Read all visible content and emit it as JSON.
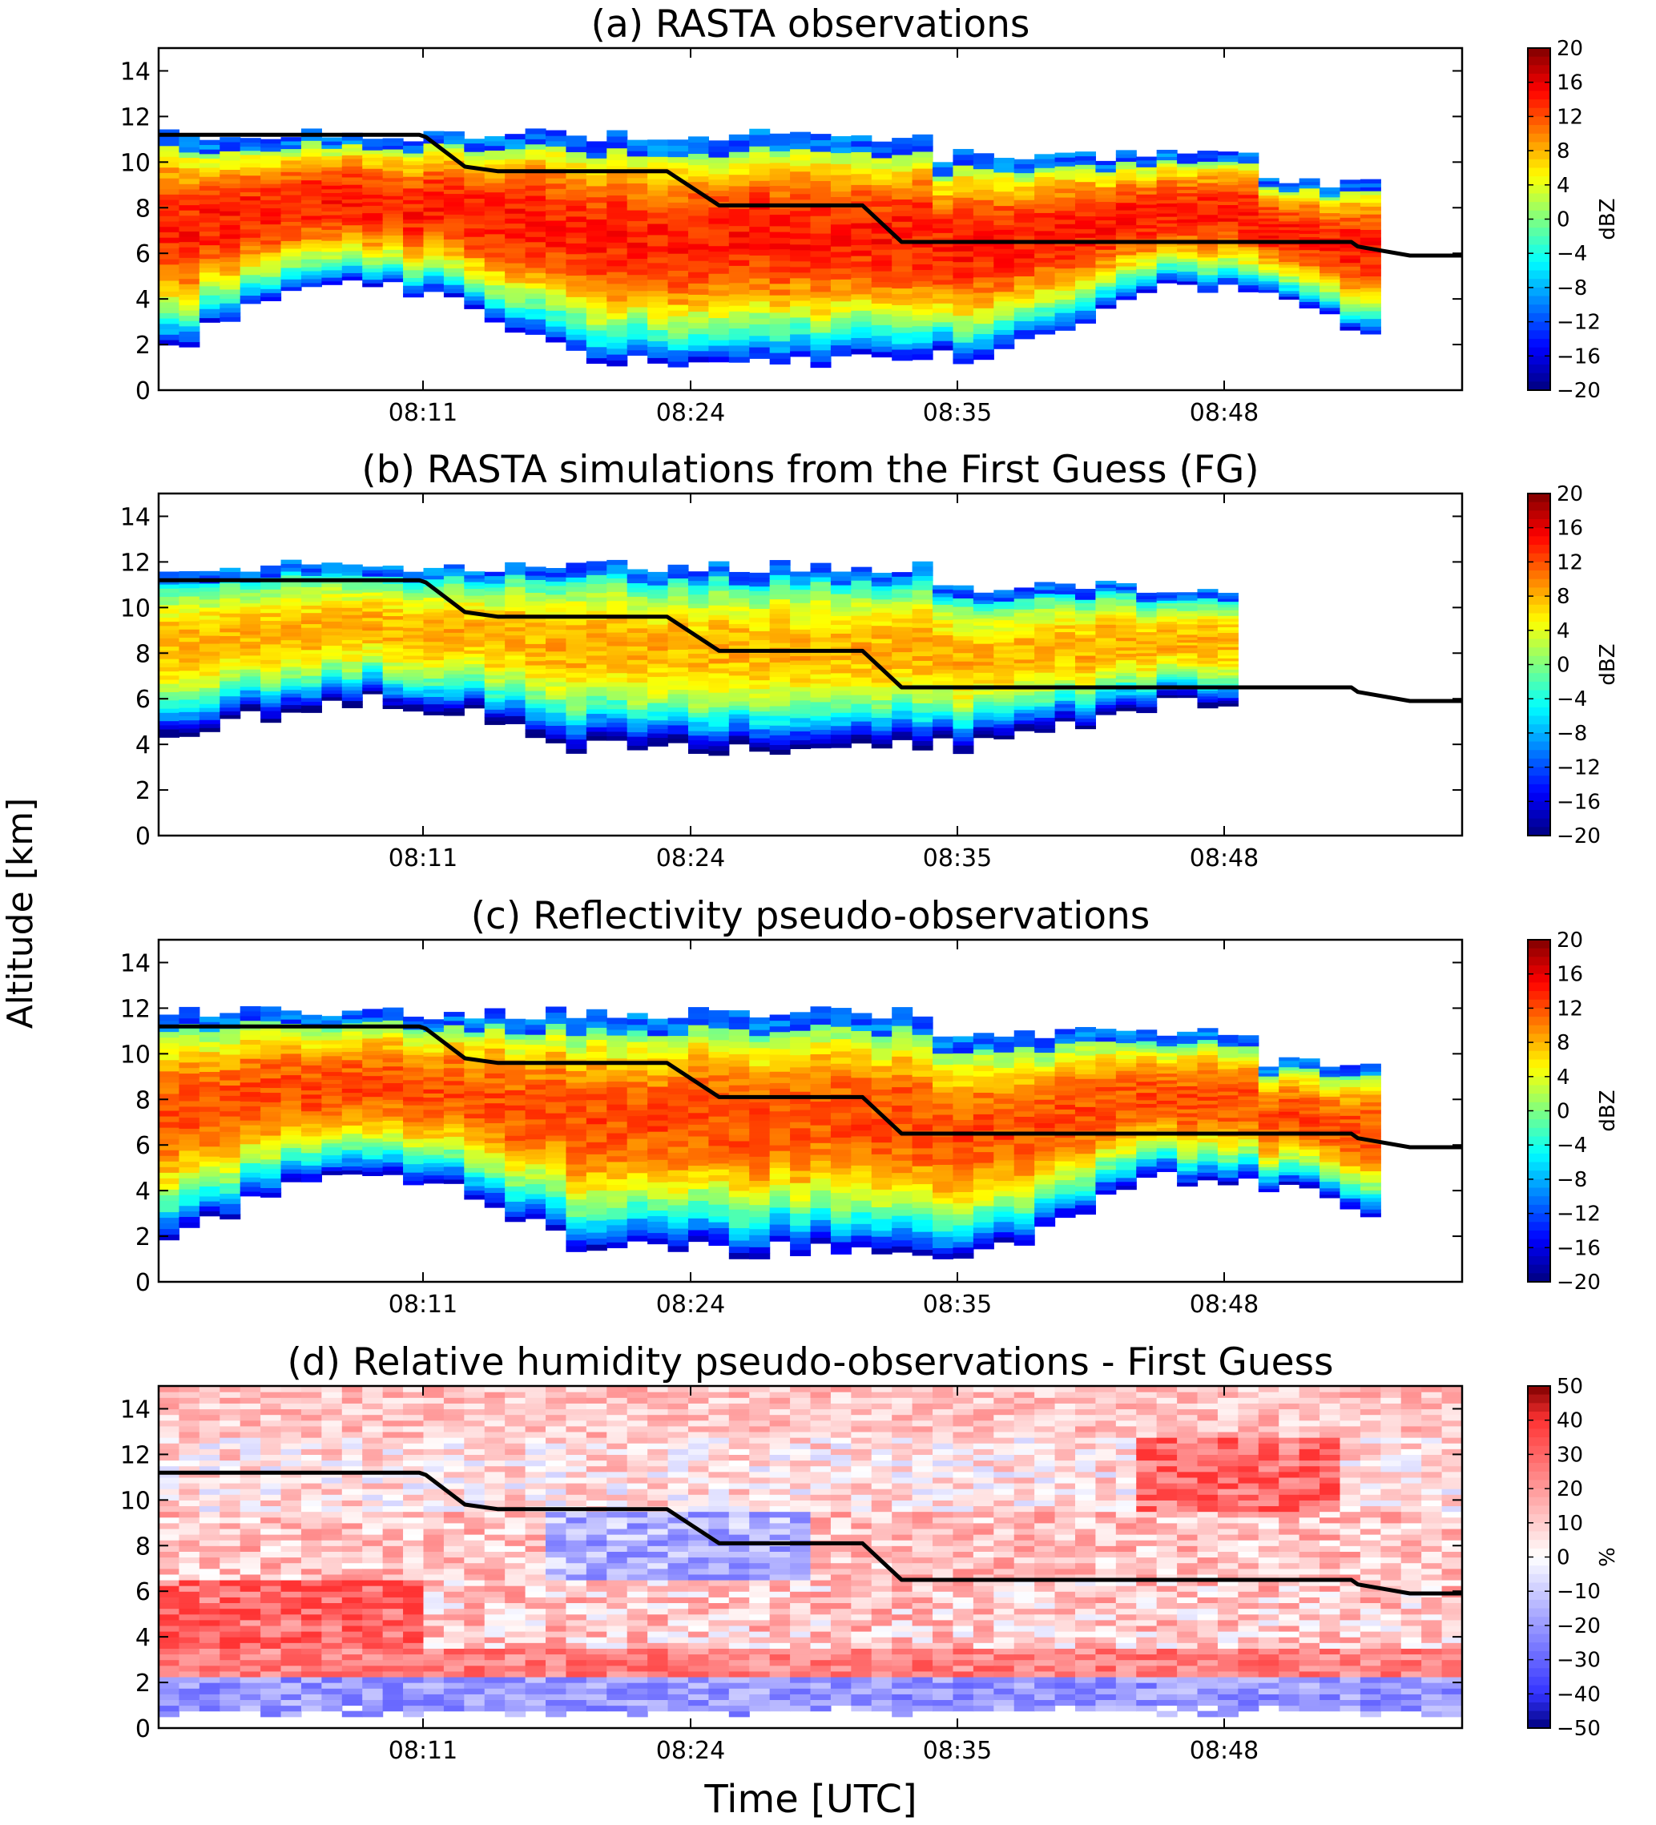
{
  "figure": {
    "ylabel": "Altitude [km]",
    "xlabel": "Time [UTC]"
  },
  "chart_data": [
    {
      "id": "a",
      "type": "heatmap",
      "title": "(a) RASTA observations",
      "ylim": [
        0,
        15
      ],
      "yticks": [
        0,
        2,
        4,
        6,
        8,
        10,
        12,
        14
      ],
      "xticks": [
        "08:11",
        "08:24",
        "08:35",
        "08:48"
      ],
      "colormap": "jet",
      "colorbar": {
        "label": "dBZ",
        "min": -20,
        "max": 20,
        "ticks": [
          20,
          16,
          12,
          8,
          4,
          0,
          -4,
          -8,
          -12,
          -16,
          -20
        ]
      },
      "field": {
        "kind": "reflectivity",
        "echo_top_km": 11.2,
        "echo_base_km": 1.0,
        "peak_dBZ": 14,
        "coverage_end_fraction": 0.94
      },
      "line": {
        "name": "",
        "color": "#000000",
        "x_fraction": [
          0,
          0.13,
          0.2,
          0.205,
          0.235,
          0.26,
          0.39,
          0.43,
          0.49,
          0.54,
          0.57,
          0.6,
          0.82,
          0.915,
          0.92,
          0.96,
          1.0
        ],
        "y_km": [
          11.2,
          11.2,
          11.2,
          11.1,
          9.8,
          9.6,
          9.6,
          8.1,
          8.1,
          8.1,
          6.5,
          6.5,
          6.5,
          6.5,
          6.3,
          5.9,
          5.9
        ]
      }
    },
    {
      "id": "b",
      "type": "heatmap",
      "title": "(b) RASTA simulations from the First Guess (FG)",
      "ylim": [
        0,
        15
      ],
      "yticks": [
        0,
        2,
        4,
        6,
        8,
        10,
        12,
        14
      ],
      "xticks": [
        "08:11",
        "08:24",
        "08:35",
        "08:48"
      ],
      "colormap": "jet",
      "colorbar": {
        "label": "dBZ",
        "min": -20,
        "max": 20,
        "ticks": [
          20,
          16,
          12,
          8,
          4,
          0,
          -4,
          -8,
          -12,
          -16,
          -20
        ]
      },
      "field": {
        "kind": "reflectivity",
        "echo_top_km": 11.8,
        "echo_base_km": 3.5,
        "peak_dBZ": 8,
        "coverage_end_fraction": 0.83
      },
      "line": {
        "name": "",
        "color": "#000000",
        "x_fraction": [
          0,
          0.13,
          0.2,
          0.205,
          0.235,
          0.26,
          0.39,
          0.43,
          0.49,
          0.54,
          0.57,
          0.6,
          0.82,
          0.915,
          0.92,
          0.96,
          1.0
        ],
        "y_km": [
          11.2,
          11.2,
          11.2,
          11.1,
          9.8,
          9.6,
          9.6,
          8.1,
          8.1,
          8.1,
          6.5,
          6.5,
          6.5,
          6.5,
          6.3,
          5.9,
          5.9
        ]
      }
    },
    {
      "id": "c",
      "type": "heatmap",
      "title": "(c) Reflectivity pseudo-observations",
      "ylim": [
        0,
        15
      ],
      "yticks": [
        0,
        2,
        4,
        6,
        8,
        10,
        12,
        14
      ],
      "xticks": [
        "08:11",
        "08:24",
        "08:35",
        "08:48"
      ],
      "colormap": "jet",
      "colorbar": {
        "label": "dBZ",
        "min": -20,
        "max": 20,
        "ticks": [
          20,
          16,
          12,
          8,
          4,
          0,
          -4,
          -8,
          -12,
          -16,
          -20
        ]
      },
      "field": {
        "kind": "reflectivity",
        "echo_top_km": 11.8,
        "echo_base_km": 1.0,
        "peak_dBZ": 12,
        "coverage_end_fraction": 0.93
      },
      "line": {
        "name": "",
        "color": "#000000",
        "x_fraction": [
          0,
          0.13,
          0.2,
          0.205,
          0.235,
          0.26,
          0.39,
          0.43,
          0.49,
          0.54,
          0.57,
          0.6,
          0.82,
          0.915,
          0.92,
          0.96,
          1.0
        ],
        "y_km": [
          11.2,
          11.2,
          11.2,
          11.1,
          9.8,
          9.6,
          9.6,
          8.1,
          8.1,
          8.1,
          6.5,
          6.5,
          6.5,
          6.5,
          6.3,
          5.9,
          5.9
        ]
      }
    },
    {
      "id": "d",
      "type": "heatmap",
      "title": "(d) Relative humidity pseudo-observations - First Guess",
      "ylim": [
        0,
        15
      ],
      "yticks": [
        0,
        2,
        4,
        6,
        8,
        10,
        12,
        14
      ],
      "xticks": [
        "08:11",
        "08:24",
        "08:35",
        "08:48"
      ],
      "colormap": "bwr",
      "colorbar": {
        "label": "%",
        "min": -50,
        "max": 50,
        "ticks": [
          50,
          40,
          30,
          20,
          10,
          0,
          -10,
          -20,
          -30,
          -40,
          -50
        ]
      },
      "field": {
        "kind": "humidity_difference",
        "echo_top_km": 15,
        "echo_base_km": 0.5,
        "peak_percent": 40
      },
      "line": {
        "name": "",
        "color": "#000000",
        "x_fraction": [
          0,
          0.13,
          0.2,
          0.205,
          0.235,
          0.26,
          0.39,
          0.43,
          0.49,
          0.54,
          0.57,
          0.6,
          0.82,
          0.915,
          0.92,
          0.96,
          1.0
        ],
        "y_km": [
          11.2,
          11.2,
          11.2,
          11.1,
          9.8,
          9.6,
          9.6,
          8.1,
          8.1,
          8.1,
          6.5,
          6.5,
          6.5,
          6.5,
          6.3,
          5.9,
          5.9
        ]
      }
    }
  ]
}
